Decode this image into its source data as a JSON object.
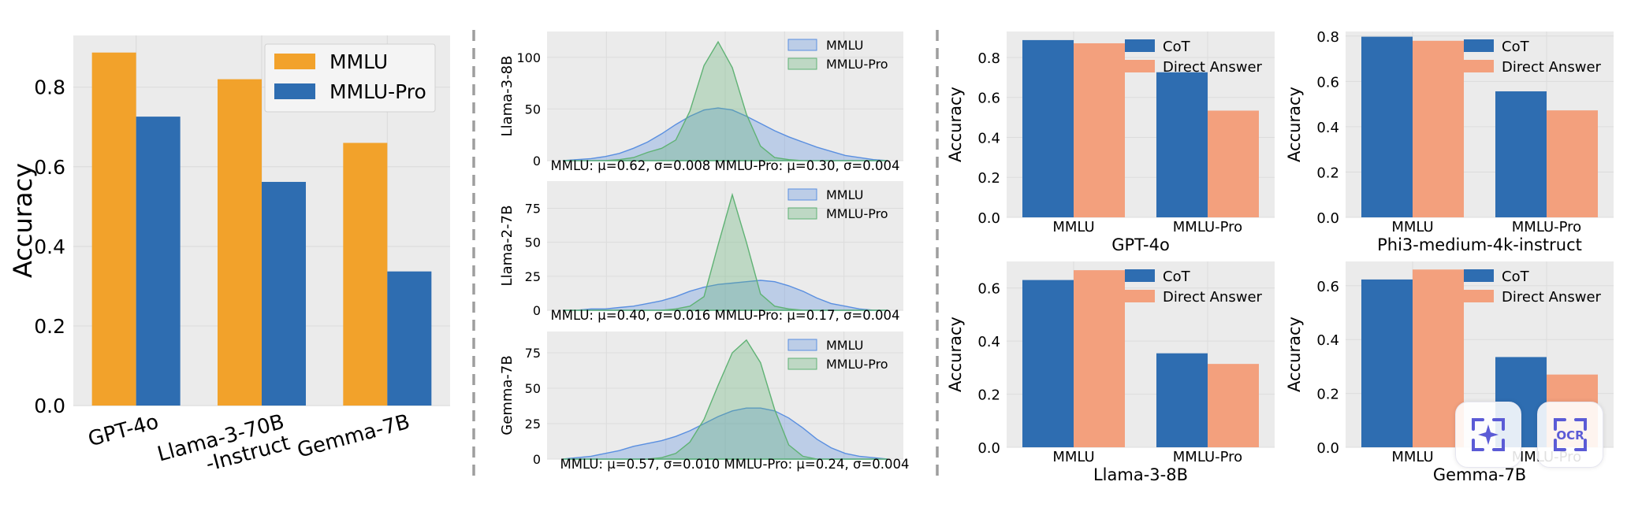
{
  "colors": {
    "mmlu_bar": "#f2a22b",
    "mmlu_pro_bar": "#2e6db1",
    "cot_bar": "#2e6db1",
    "direct_bar": "#f3a07d",
    "kde_mmlu": "#5a8fe0",
    "kde_mmlu_pro": "#5fb274",
    "panel_bg": "#ebebeb",
    "grid": "#dcdcdc",
    "divider": "#9e9e9e"
  },
  "chart_data": [
    {
      "id": "accuracy-comparison",
      "type": "bar",
      "ylabel": "Accuracy",
      "ylim": [
        0,
        0.93
      ],
      "yticks": [
        "0.0",
        "0.2",
        "0.4",
        "0.6",
        "0.8"
      ],
      "categories": [
        "GPT-4o",
        "Llama-3-70B\n-Instruct",
        "Gemma-7B"
      ],
      "series": [
        {
          "name": "MMLU",
          "values": [
            0.887,
            0.82,
            0.66
          ]
        },
        {
          "name": "MMLU-Pro",
          "values": [
            0.726,
            0.562,
            0.337
          ]
        }
      ],
      "legend": "top-right"
    },
    {
      "id": "kde-distributions",
      "type": "area",
      "panels": [
        {
          "ylabel": "Llama-3-8B",
          "ylim": [
            0,
            125
          ],
          "yticks": [
            "0",
            "50",
            "100"
          ],
          "annotation": "MMLU: μ=0.62, σ=0.008  MMLU-Pro: μ=0.30, σ=0.004",
          "series": [
            {
              "name": "MMLU",
              "values": [
                0,
                1,
                2,
                4,
                7,
                12,
                18,
                26,
                35,
                43,
                49,
                51,
                49,
                43,
                36,
                29,
                23,
                18,
                13,
                9,
                5,
                3,
                1,
                0
              ]
            },
            {
              "name": "MMLU-Pro",
              "values": [
                0,
                0,
                0,
                0,
                1,
                3,
                8,
                12,
                20,
                48,
                92,
                115,
                90,
                45,
                14,
                3,
                1,
                0,
                0,
                0,
                0,
                0,
                0,
                0
              ]
            }
          ]
        },
        {
          "ylabel": "Llama-2-7B",
          "ylim": [
            0,
            95
          ],
          "yticks": [
            "0",
            "25",
            "50",
            "75"
          ],
          "annotation": "MMLU: μ=0.40, σ=0.016  MMLU-Pro: μ=0.17, σ=0.004",
          "series": [
            {
              "name": "MMLU",
              "values": [
                0,
                0,
                1,
                1,
                2,
                3,
                5,
                7,
                10,
                14,
                17,
                19,
                20,
                21,
                22,
                21,
                18,
                14,
                9,
                5,
                3,
                1,
                0,
                0
              ]
            },
            {
              "name": "MMLU-Pro",
              "values": [
                0,
                0,
                0,
                0,
                0,
                0,
                0,
                0,
                1,
                3,
                10,
                48,
                85,
                50,
                12,
                3,
                1,
                0,
                0,
                0,
                0,
                0,
                0,
                0
              ]
            }
          ]
        },
        {
          "ylabel": "Gemma-7B",
          "ylim": [
            0,
            90
          ],
          "yticks": [
            "0",
            "25",
            "50",
            "75"
          ],
          "annotation": "MMLU: μ=0.57, σ=0.010  MMLU-Pro: μ=0.24, σ=0.004",
          "series": [
            {
              "name": "MMLU",
              "values": [
                0,
                1,
                2,
                4,
                6,
                9,
                11,
                13,
                16,
                20,
                25,
                30,
                34,
                36,
                36,
                34,
                29,
                22,
                14,
                8,
                4,
                2,
                1,
                0
              ]
            },
            {
              "name": "MMLU-Pro",
              "values": [
                0,
                0,
                0,
                0,
                0,
                0,
                0,
                1,
                4,
                12,
                28,
                52,
                75,
                84,
                68,
                35,
                10,
                2,
                0,
                0,
                0,
                0,
                0,
                0
              ]
            }
          ]
        }
      ],
      "legend": "top-right"
    },
    {
      "id": "cot-vs-direct",
      "type": "bar",
      "categories": [
        "MMLU",
        "MMLU-Pro"
      ],
      "panels": [
        {
          "title": "GPT-4o",
          "ylabel": "Accuracy",
          "ylim": [
            0,
            0.93
          ],
          "yticks": [
            "0.0",
            "0.2",
            "0.4",
            "0.6",
            "0.8"
          ],
          "series": [
            {
              "name": "CoT",
              "values": [
                0.887,
                0.726
              ]
            },
            {
              "name": "Direct Answer",
              "values": [
                0.871,
                0.534
              ]
            }
          ]
        },
        {
          "title": "Phi3-medium-4k-instruct",
          "ylabel": "Accuracy",
          "ylim": [
            0,
            0.82
          ],
          "yticks": [
            "0.0",
            "0.2",
            "0.4",
            "0.6",
            "0.8"
          ],
          "series": [
            {
              "name": "CoT",
              "values": [
                0.797,
                0.556
              ]
            },
            {
              "name": "Direct Answer",
              "values": [
                0.779,
                0.472
              ]
            }
          ]
        },
        {
          "title": "Llama-3-8B",
          "ylabel": "Accuracy",
          "ylim": [
            0,
            0.7
          ],
          "yticks": [
            "0.0",
            "0.2",
            "0.4",
            "0.6"
          ],
          "series": [
            {
              "name": "CoT",
              "values": [
                0.63,
                0.354
              ]
            },
            {
              "name": "Direct Answer",
              "values": [
                0.667,
                0.314
              ]
            }
          ]
        },
        {
          "title": "Gemma-7B",
          "ylabel": "Accuracy",
          "ylim": [
            0,
            0.69
          ],
          "yticks": [
            "0.0",
            "0.2",
            "0.4",
            "0.6"
          ],
          "series": [
            {
              "name": "CoT",
              "values": [
                0.623,
                0.335
              ]
            },
            {
              "name": "Direct Answer",
              "values": [
                0.66,
                0.27
              ]
            }
          ]
        }
      ],
      "legend": "top-right"
    }
  ],
  "overlay": {
    "ai_button_label": "AI",
    "ocr_button_label": "OCR"
  }
}
